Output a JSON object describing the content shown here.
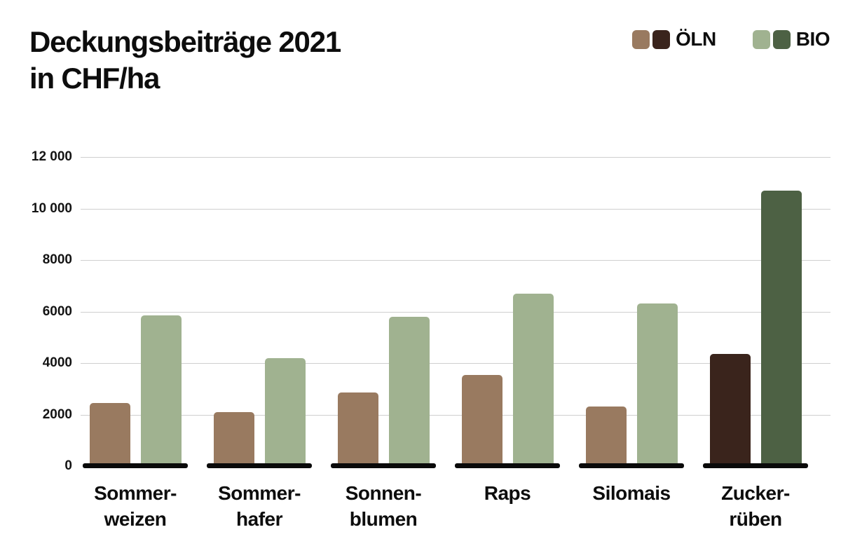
{
  "title": {
    "line1": "Deckungsbeiträge 2021",
    "line2": "in CHF/ha"
  },
  "legend": {
    "items": [
      {
        "label": "ÖLN",
        "swatch_light": "#997a60",
        "swatch_dark": "#3a241c"
      },
      {
        "label": "BIO",
        "swatch_light": "#a0b290",
        "swatch_dark": "#4d6144"
      }
    ],
    "position": "top-right"
  },
  "chart_data": {
    "type": "bar",
    "title": "Deckungsbeiträge 2021 in CHF/ha",
    "xlabel": "",
    "ylabel": "CHF/ha",
    "categories": [
      "Sommer-weizen",
      "Sommer-hafer",
      "Sonnen-blumen",
      "Raps",
      "Silomais",
      "Zucker-rüben"
    ],
    "category_lines": [
      [
        "Sommer-",
        "weizen"
      ],
      [
        "Sommer-",
        "hafer"
      ],
      [
        "Sonnen-",
        "blumen"
      ],
      [
        "Raps"
      ],
      [
        "Silomais"
      ],
      [
        "Zucker-",
        "rüben"
      ]
    ],
    "series": [
      {
        "name": "ÖLN",
        "values": [
          2450,
          2100,
          2850,
          3550,
          2300,
          4350
        ],
        "color": "#997a60",
        "highlight_color": "#3a241c"
      },
      {
        "name": "BIO",
        "values": [
          5850,
          4200,
          5800,
          6700,
          6300,
          10700
        ],
        "color": "#a0b290",
        "highlight_color": "#4d6144"
      }
    ],
    "highlight_index": 5,
    "ylim": [
      0,
      12000
    ],
    "yticks": [
      {
        "value": 12000,
        "label": "12 000"
      },
      {
        "value": 10000,
        "label": "10 000"
      },
      {
        "value": 8000,
        "label": "8000"
      },
      {
        "value": 6000,
        "label": "6000"
      },
      {
        "value": 4000,
        "label": "4000"
      },
      {
        "value": 2000,
        "label": "2000"
      },
      {
        "value": 0,
        "label": "0"
      }
    ],
    "grid": "horizontal",
    "gridline_color": "#cfcfcf",
    "baseline_color": "#0a0a0a",
    "legend_position": "top-right"
  }
}
